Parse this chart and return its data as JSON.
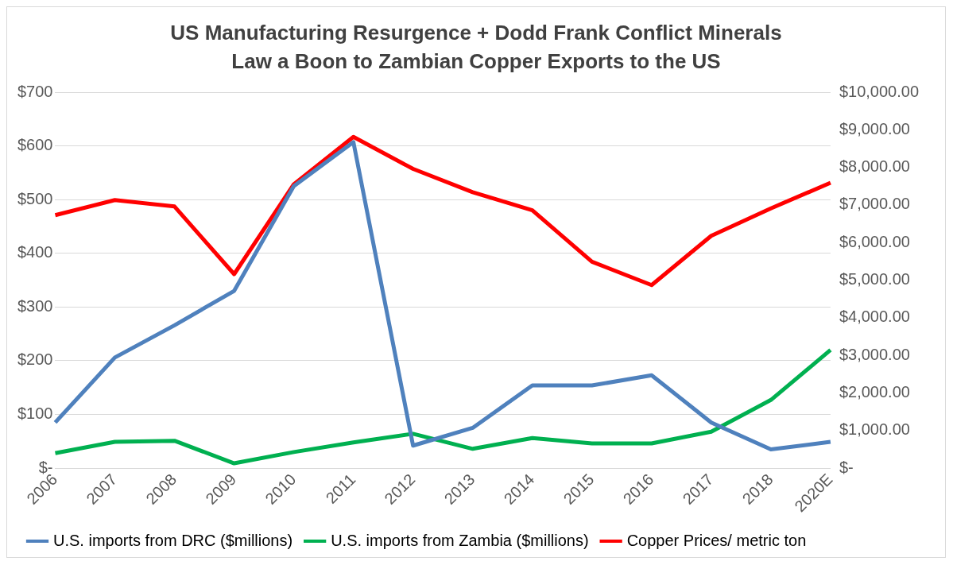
{
  "chart_data": {
    "type": "line",
    "title": "US Manufacturing Resurgence + Dodd Frank Conflict Minerals Law a Boon to Zambian Copper Exports to the US",
    "categories": [
      "2006",
      "2007",
      "2008",
      "2009",
      "2010",
      "2011",
      "2012",
      "2013",
      "2014",
      "2015",
      "2016",
      "2017",
      "2018",
      "2020E"
    ],
    "series": [
      {
        "name": "U.S. imports from DRC ($millions)",
        "color": "#4f81bd",
        "values": [
          85,
          206,
          266,
          330,
          525,
          607,
          42,
          75,
          154,
          154,
          173,
          85,
          35,
          49
        ]
      },
      {
        "name": "U.S. imports from Zambia ($millions)",
        "color": "#00b050",
        "values": [
          28,
          49,
          51,
          9,
          30,
          48,
          64,
          36,
          56,
          46,
          46,
          68,
          127,
          220
        ]
      },
      {
        "name": "Copper Prices/ metric ton",
        "color": "#ff0000",
        "axis": "y2",
        "values": [
          6730,
          7130,
          6960,
          5160,
          7550,
          8810,
          7960,
          7340,
          6860,
          5490,
          4870,
          6180,
          6910,
          7590
        ]
      }
    ],
    "ylim": [
      0,
      700
    ],
    "yticks": [
      {
        "value": 0,
        "label": "$-"
      },
      {
        "value": 100,
        "label": "$100"
      },
      {
        "value": 200,
        "label": "$200"
      },
      {
        "value": 300,
        "label": "$300"
      },
      {
        "value": 400,
        "label": "$400"
      },
      {
        "value": 500,
        "label": "$500"
      },
      {
        "value": 600,
        "label": "$600"
      },
      {
        "value": 700,
        "label": "$700"
      }
    ],
    "y2lim": [
      0,
      10000
    ],
    "y2ticks": [
      {
        "value": 0,
        "label": "$-"
      },
      {
        "value": 1000,
        "label": "$1,000.00"
      },
      {
        "value": 2000,
        "label": "$2,000.00"
      },
      {
        "value": 3000,
        "label": "$3,000.00"
      },
      {
        "value": 4000,
        "label": "$4,000.00"
      },
      {
        "value": 5000,
        "label": "$5,000.00"
      },
      {
        "value": 6000,
        "label": "$6,000.00"
      },
      {
        "value": 7000,
        "label": "$7,000.00"
      },
      {
        "value": 8000,
        "label": "$8,000.00"
      },
      {
        "value": 9000,
        "label": "$9,000.00"
      },
      {
        "value": 10000,
        "label": "$10,000.00"
      }
    ],
    "grid": "y",
    "legend": "bottom",
    "marker": "none",
    "line_style": "solid"
  }
}
